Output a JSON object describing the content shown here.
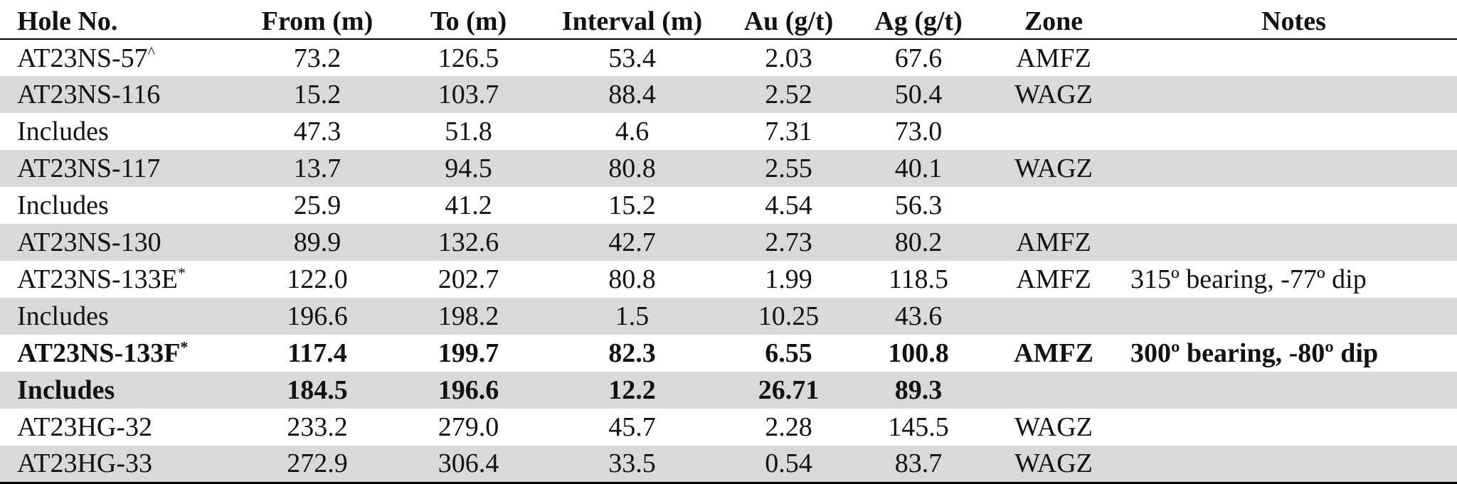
{
  "headers": [
    "Hole No.",
    "From (m)",
    "To (m)",
    "Interval (m)",
    "Au (g/t)",
    "Ag (g/t)",
    "Zone",
    "Notes"
  ],
  "rows": [
    {
      "hole": "AT23NS-57",
      "sup": "^",
      "from": "73.2",
      "to": "126.5",
      "interval": "53.4",
      "au": "2.03",
      "ag": "67.6",
      "zone": "AMFZ",
      "notes": "",
      "shaded": false,
      "bold": false
    },
    {
      "hole": "AT23NS-116",
      "sup": "",
      "from": "15.2",
      "to": "103.7",
      "interval": "88.4",
      "au": "2.52",
      "ag": "50.4",
      "zone": "WAGZ",
      "notes": "",
      "shaded": true,
      "bold": false
    },
    {
      "hole": "Includes",
      "sup": "",
      "from": "47.3",
      "to": "51.8",
      "interval": "4.6",
      "au": "7.31",
      "ag": "73.0",
      "zone": "",
      "notes": "",
      "shaded": false,
      "bold": false
    },
    {
      "hole": "AT23NS-117",
      "sup": "",
      "from": "13.7",
      "to": "94.5",
      "interval": "80.8",
      "au": "2.55",
      "ag": "40.1",
      "zone": "WAGZ",
      "notes": "",
      "shaded": true,
      "bold": false
    },
    {
      "hole": "Includes",
      "sup": "",
      "from": "25.9",
      "to": "41.2",
      "interval": "15.2",
      "au": "4.54",
      "ag": "56.3",
      "zone": "",
      "notes": "",
      "shaded": false,
      "bold": false
    },
    {
      "hole": "AT23NS-130",
      "sup": "",
      "from": "89.9",
      "to": "132.6",
      "interval": "42.7",
      "au": "2.73",
      "ag": "80.2",
      "zone": "AMFZ",
      "notes": "",
      "shaded": true,
      "bold": false
    },
    {
      "hole": "AT23NS-133E",
      "sup": "*",
      "from": "122.0",
      "to": "202.7",
      "interval": "80.8",
      "au": "1.99",
      "ag": "118.5",
      "zone": "AMFZ",
      "notes": "315º bearing, -77º dip",
      "shaded": false,
      "bold": false
    },
    {
      "hole": "Includes",
      "sup": "",
      "from": "196.6",
      "to": "198.2",
      "interval": "1.5",
      "au": "10.25",
      "ag": "43.6",
      "zone": "",
      "notes": "",
      "shaded": true,
      "bold": false
    },
    {
      "hole": "AT23NS-133F",
      "sup": "*",
      "from": "117.4",
      "to": "199.7",
      "interval": "82.3",
      "au": "6.55",
      "ag": "100.8",
      "zone": "AMFZ",
      "notes": "300º bearing, -80º dip",
      "shaded": false,
      "bold": true
    },
    {
      "hole": "Includes",
      "sup": "",
      "from": "184.5",
      "to": "196.6",
      "interval": "12.2",
      "au": "26.71",
      "ag": "89.3",
      "zone": "",
      "notes": "",
      "shaded": true,
      "bold": true
    },
    {
      "hole": "AT23HG-32",
      "sup": "",
      "from": "233.2",
      "to": "279.0",
      "interval": "45.7",
      "au": "2.28",
      "ag": "145.5",
      "zone": "WAGZ",
      "notes": "",
      "shaded": false,
      "bold": false
    },
    {
      "hole": "AT23HG-33",
      "sup": "",
      "from": "272.9",
      "to": "306.4",
      "interval": "33.5",
      "au": "0.54",
      "ag": "83.7",
      "zone": "WAGZ",
      "notes": "",
      "shaded": true,
      "bold": false
    }
  ]
}
